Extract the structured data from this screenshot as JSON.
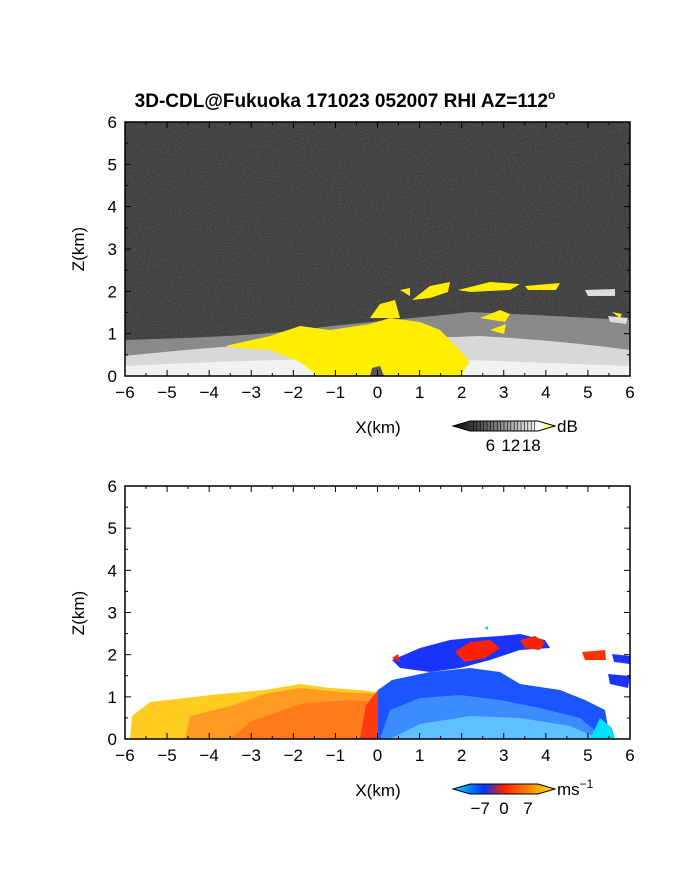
{
  "title": "3D-CDL@Fukuoka 171023 052007 RHI AZ=112",
  "title_sup": "o",
  "chart_data": [
    {
      "type": "heatmap",
      "name": "backscatter",
      "xlabel": "X(km)",
      "ylabel": "Z(km)",
      "xlim": [
        -6,
        6
      ],
      "ylim": [
        0,
        6
      ],
      "xticks": [
        "-6",
        "-5",
        "-4",
        "-3",
        "-2",
        "-1",
        "0",
        "1",
        "2",
        "3",
        "4",
        "5",
        "6"
      ],
      "yticks": [
        "0",
        "1",
        "2",
        "3",
        "4",
        "5",
        "6"
      ],
      "colorbar": {
        "unit": "dB",
        "ticks": [
          "6",
          "12",
          "18"
        ],
        "values": [
          6,
          12,
          18
        ],
        "range": [
          0,
          20
        ],
        "colors": [
          "#000000",
          "#ffffff",
          "#ffee00"
        ]
      },
      "background": "#2c2c2c",
      "saturated_color": "#ffee00"
    },
    {
      "type": "heatmap",
      "name": "doppler",
      "xlabel": "X(km)",
      "ylabel": "Z(km)",
      "xlim": [
        -6,
        6
      ],
      "ylim": [
        0,
        6
      ],
      "xticks": [
        "-6",
        "-5",
        "-4",
        "-3",
        "-2",
        "-1",
        "0",
        "1",
        "2",
        "3",
        "4",
        "5",
        "6"
      ],
      "yticks": [
        "0",
        "1",
        "2",
        "3",
        "4",
        "5",
        "6"
      ],
      "colorbar": {
        "unit": "ms",
        "unit_sup": "−1",
        "ticks": [
          "−7",
          "0",
          "7"
        ],
        "values": [
          -7,
          0,
          7
        ],
        "range": [
          -10,
          10
        ],
        "colors": [
          "#00ddff",
          "#0033ff",
          "#ff2200",
          "#ffee00"
        ]
      },
      "background": "#ffffff"
    }
  ]
}
